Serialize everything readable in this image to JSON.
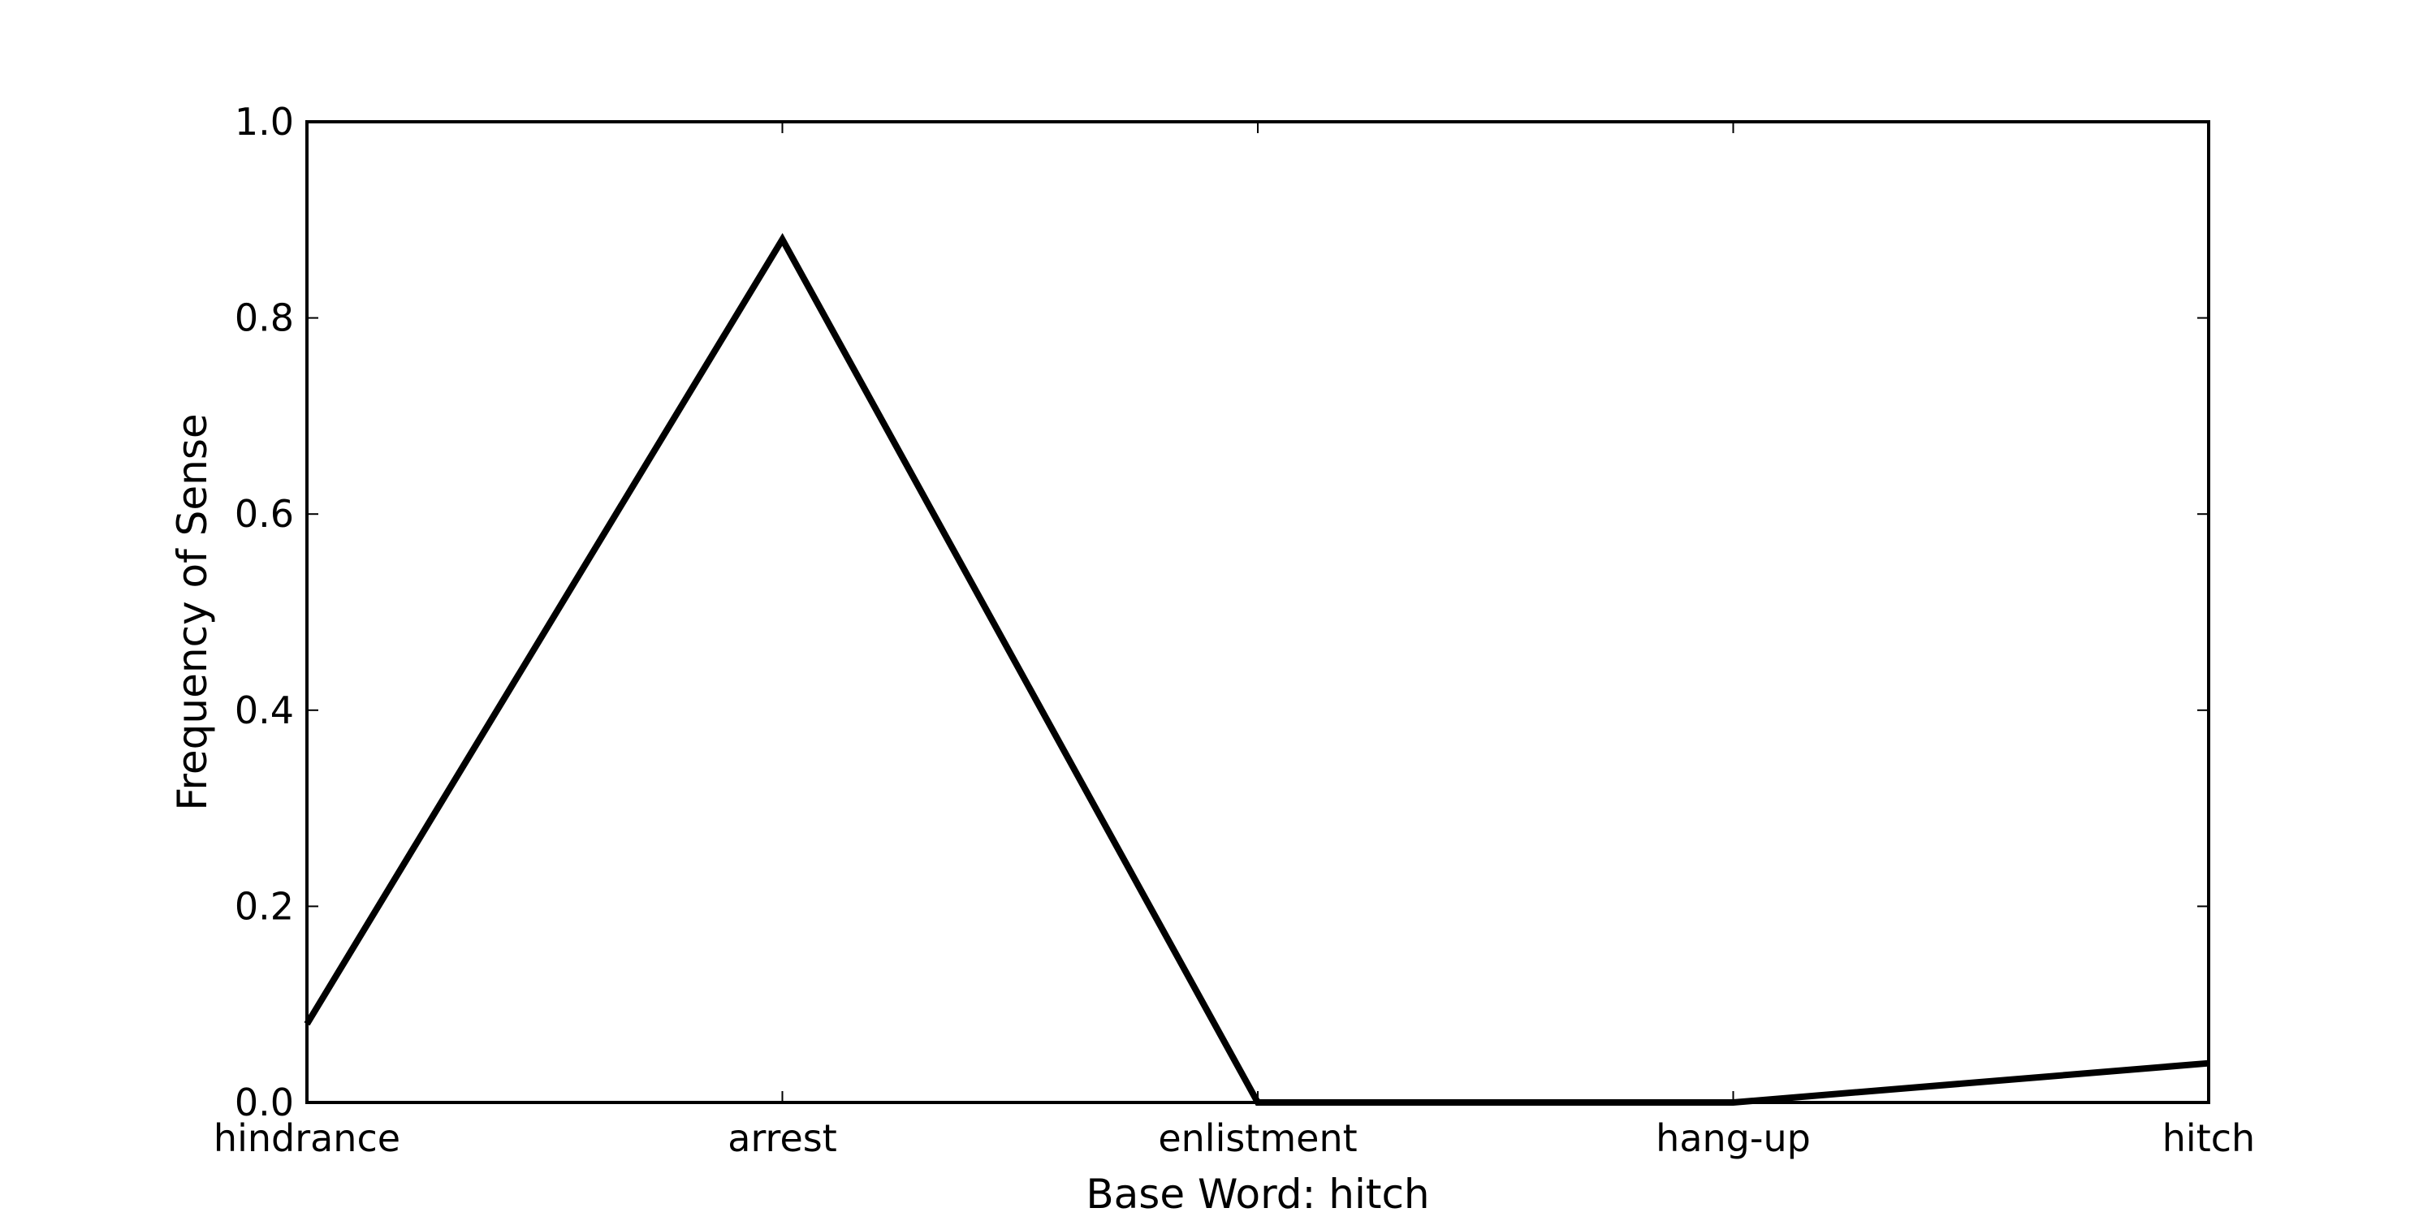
{
  "chart_data": {
    "type": "line",
    "categories": [
      "hindrance",
      "arrest",
      "enlistment",
      "hang-up",
      "hitch"
    ],
    "series": [
      {
        "values": [
          0.08,
          0.88,
          0.0,
          0.0,
          0.04
        ],
        "color": "#000000"
      }
    ],
    "xlabel": "Base Word: hitch",
    "ylabel": "Frequency of Sense",
    "ylim": [
      0.0,
      1.0
    ],
    "yticks": [
      0.0,
      0.2,
      0.4,
      0.6,
      0.8,
      1.0
    ],
    "ytick_labels": [
      "0.0",
      "0.2",
      "0.4",
      "0.6",
      "0.8",
      "1.0"
    ],
    "grid": false,
    "legend": "none"
  }
}
